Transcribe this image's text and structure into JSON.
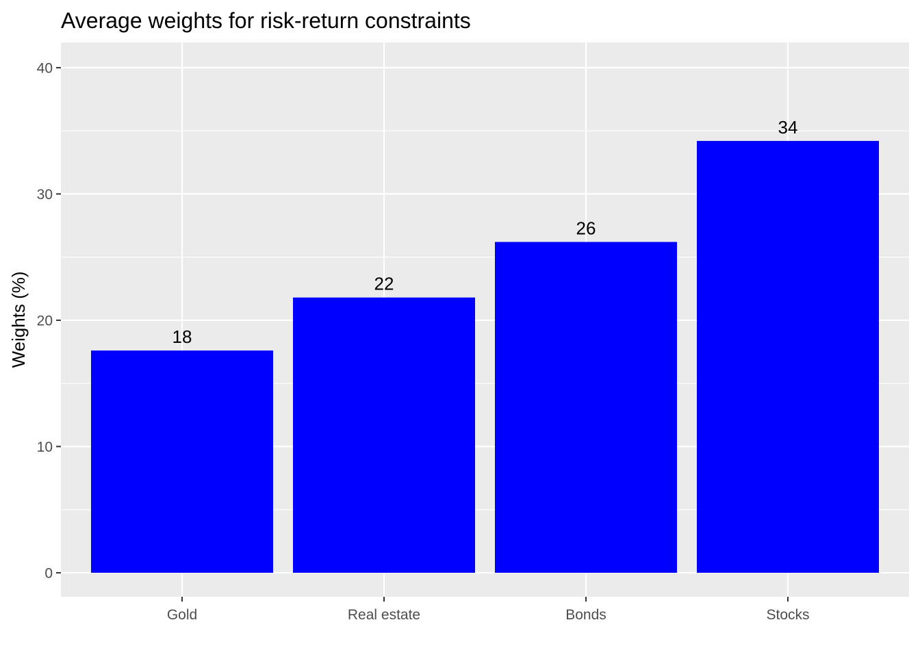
{
  "chart_data": {
    "type": "bar",
    "title": "Average weights for risk-return constraints",
    "xlabel": "",
    "ylabel": "Weights (%)",
    "categories": [
      "Gold",
      "Real estate",
      "Bonds",
      "Stocks"
    ],
    "values": [
      17.6,
      21.8,
      26.2,
      34.2
    ],
    "data_labels": [
      "18",
      "22",
      "26",
      "34"
    ],
    "ylim": [
      -1.9,
      42
    ],
    "yticks": [
      0,
      10,
      20,
      30,
      40
    ],
    "ytick_labels": [
      "0",
      "10",
      "20",
      "30",
      "40"
    ],
    "grid": true,
    "legend": "none",
    "colors": {
      "bar": "#0000FF",
      "panel_background": "#EBEBEB",
      "grid": "#FFFFFF",
      "tick_text": "#4D4D4D",
      "tick_mark": "#333333"
    }
  }
}
